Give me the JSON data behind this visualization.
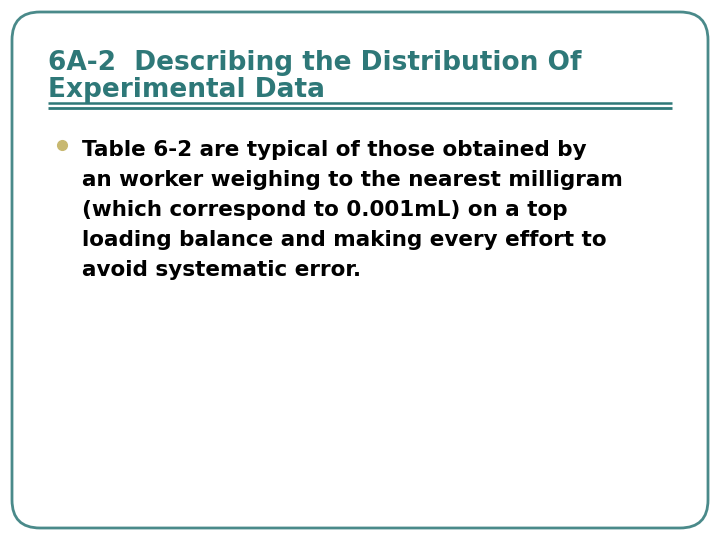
{
  "title_line1": "6A-2  Describing the Distribution Of",
  "title_line2": "Experimental Data",
  "title_color": "#2e7878",
  "title_fontsize": 19,
  "divider_color": "#2e7878",
  "bullet_color": "#c8b870",
  "bullet_text_line1": "Table 6-2 are typical of those obtained by",
  "bullet_text_line2": "an worker weighing to the nearest milligram",
  "bullet_text_line3": "(which correspond to 0.001mL) on a top",
  "bullet_text_line4": "loading balance and making every effort to",
  "bullet_text_line5": "avoid systematic error.",
  "bullet_fontsize": 15.5,
  "body_text_color": "#000000",
  "background_color": "#ffffff",
  "border_color": "#4a8a8a",
  "border_linewidth": 2.0
}
